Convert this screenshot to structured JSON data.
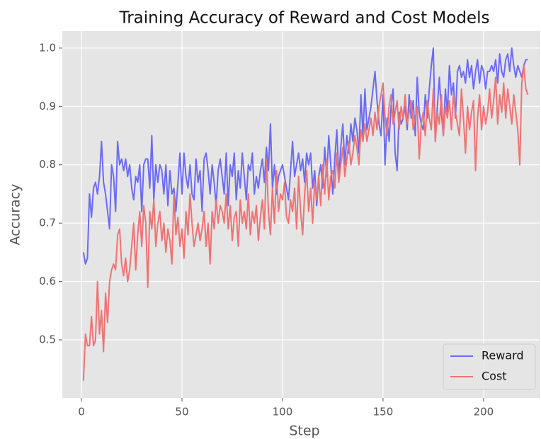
{
  "chart_data": {
    "type": "line",
    "title": "Training Accuracy of Reward and Cost Models",
    "xlabel": "Step",
    "ylabel": "Accuracy",
    "x": [
      1,
      2,
      3,
      4,
      5,
      6,
      7,
      8,
      9,
      10,
      11,
      12,
      13,
      14,
      15,
      16,
      17,
      18,
      19,
      20,
      21,
      22,
      23,
      24,
      25,
      26,
      27,
      28,
      29,
      30,
      31,
      32,
      33,
      34,
      35,
      36,
      37,
      38,
      39,
      40,
      41,
      42,
      43,
      44,
      45,
      46,
      47,
      48,
      49,
      50,
      51,
      52,
      53,
      54,
      55,
      56,
      57,
      58,
      59,
      60,
      61,
      62,
      63,
      64,
      65,
      66,
      67,
      68,
      69,
      70,
      71,
      72,
      73,
      74,
      75,
      76,
      77,
      78,
      79,
      80,
      81,
      82,
      83,
      84,
      85,
      86,
      87,
      88,
      89,
      90,
      91,
      92,
      93,
      94,
      95,
      96,
      97,
      98,
      99,
      100,
      101,
      102,
      103,
      104,
      105,
      106,
      107,
      108,
      109,
      110,
      111,
      112,
      113,
      114,
      115,
      116,
      117,
      118,
      119,
      120,
      121,
      122,
      123,
      124,
      125,
      126,
      127,
      128,
      129,
      130,
      131,
      132,
      133,
      134,
      135,
      136,
      137,
      138,
      139,
      140,
      141,
      142,
      143,
      144,
      145,
      146,
      147,
      148,
      149,
      150,
      151,
      152,
      153,
      154,
      155,
      156,
      157,
      158,
      159,
      160,
      161,
      162,
      163,
      164,
      165,
      166,
      167,
      168,
      169,
      170,
      171,
      172,
      173,
      174,
      175,
      176,
      177,
      178,
      179,
      180,
      181,
      182,
      183,
      184,
      185,
      186,
      187,
      188,
      189,
      190,
      191,
      192,
      193,
      194,
      195,
      196,
      197,
      198,
      199,
      200,
      201,
      202,
      203,
      204,
      205,
      206,
      207,
      208,
      209,
      210,
      211,
      212,
      213,
      214,
      215,
      216,
      217,
      218,
      219,
      220,
      221,
      222
    ],
    "series": [
      {
        "name": "Reward",
        "color": "#6b6bf4",
        "values": [
          0.65,
          0.63,
          0.64,
          0.75,
          0.71,
          0.76,
          0.77,
          0.75,
          0.78,
          0.84,
          0.77,
          0.75,
          0.72,
          0.69,
          0.8,
          0.78,
          0.72,
          0.84,
          0.8,
          0.81,
          0.79,
          0.81,
          0.78,
          0.8,
          0.76,
          0.74,
          0.78,
          0.77,
          0.8,
          0.72,
          0.8,
          0.81,
          0.81,
          0.76,
          0.85,
          0.74,
          0.8,
          0.77,
          0.8,
          0.79,
          0.75,
          0.8,
          0.73,
          0.79,
          0.75,
          0.76,
          0.72,
          0.77,
          0.82,
          0.75,
          0.82,
          0.78,
          0.76,
          0.8,
          0.75,
          0.74,
          0.81,
          0.77,
          0.79,
          0.72,
          0.81,
          0.82,
          0.79,
          0.75,
          0.8,
          0.77,
          0.73,
          0.79,
          0.81,
          0.78,
          0.75,
          0.82,
          0.73,
          0.8,
          0.78,
          0.82,
          0.74,
          0.79,
          0.76,
          0.82,
          0.78,
          0.74,
          0.8,
          0.79,
          0.82,
          0.75,
          0.78,
          0.76,
          0.79,
          0.81,
          0.77,
          0.83,
          0.79,
          0.87,
          0.76,
          0.8,
          0.75,
          0.78,
          0.79,
          0.8,
          0.78,
          0.76,
          0.74,
          0.79,
          0.84,
          0.78,
          0.8,
          0.82,
          0.79,
          0.81,
          0.77,
          0.82,
          0.8,
          0.82,
          0.76,
          0.79,
          0.73,
          0.78,
          0.8,
          0.76,
          0.83,
          0.78,
          0.85,
          0.8,
          0.75,
          0.81,
          0.86,
          0.78,
          0.83,
          0.87,
          0.8,
          0.85,
          0.82,
          0.87,
          0.84,
          0.88,
          0.86,
          0.82,
          0.92,
          0.85,
          0.93,
          0.86,
          0.88,
          0.9,
          0.93,
          0.96,
          0.91,
          0.87,
          0.85,
          0.92,
          0.8,
          0.88,
          0.84,
          0.9,
          0.93,
          0.82,
          0.79,
          0.89,
          0.87,
          0.88,
          0.9,
          0.86,
          0.92,
          0.88,
          0.91,
          0.85,
          0.95,
          0.89,
          0.87,
          0.86,
          0.92,
          0.88,
          0.93,
          0.97,
          1.0,
          0.84,
          0.9,
          0.95,
          0.89,
          0.85,
          0.93,
          0.89,
          0.97,
          0.92,
          0.94,
          0.88,
          0.96,
          0.97,
          0.95,
          0.96,
          0.94,
          0.98,
          0.95,
          0.97,
          0.93,
          0.96,
          0.98,
          0.94,
          0.97,
          0.96,
          0.93,
          0.96,
          0.96,
          0.97,
          0.96,
          0.98,
          0.94,
          0.99,
          0.96,
          0.95,
          0.98,
          0.99,
          0.96,
          1.0,
          0.97,
          0.95,
          0.97,
          0.96,
          0.95,
          0.97,
          0.98,
          0.98
        ]
      },
      {
        "name": "Cost",
        "color": "#f07272",
        "values": [
          0.43,
          0.51,
          0.49,
          0.49,
          0.54,
          0.49,
          0.5,
          0.6,
          0.51,
          0.55,
          0.48,
          0.58,
          0.53,
          0.6,
          0.62,
          0.63,
          0.62,
          0.68,
          0.69,
          0.63,
          0.61,
          0.64,
          0.6,
          0.62,
          0.66,
          0.7,
          0.62,
          0.68,
          0.72,
          0.66,
          0.73,
          0.7,
          0.59,
          0.72,
          0.69,
          0.74,
          0.66,
          0.7,
          0.72,
          0.67,
          0.7,
          0.65,
          0.69,
          0.67,
          0.63,
          0.75,
          0.68,
          0.71,
          0.66,
          0.69,
          0.64,
          0.72,
          0.68,
          0.75,
          0.7,
          0.66,
          0.68,
          0.7,
          0.67,
          0.69,
          0.72,
          0.66,
          0.7,
          0.63,
          0.72,
          0.69,
          0.74,
          0.7,
          0.73,
          0.72,
          0.7,
          0.75,
          0.69,
          0.73,
          0.67,
          0.71,
          0.72,
          0.66,
          0.74,
          0.7,
          0.72,
          0.69,
          0.75,
          0.68,
          0.72,
          0.7,
          0.73,
          0.67,
          0.71,
          0.74,
          0.69,
          0.81,
          0.72,
          0.68,
          0.76,
          0.7,
          0.79,
          0.72,
          0.75,
          0.74,
          0.77,
          0.71,
          0.7,
          0.74,
          0.72,
          0.76,
          0.69,
          0.78,
          0.72,
          0.68,
          0.75,
          0.79,
          0.72,
          0.76,
          0.7,
          0.77,
          0.74,
          0.78,
          0.73,
          0.8,
          0.75,
          0.81,
          0.74,
          0.78,
          0.79,
          0.76,
          0.82,
          0.77,
          0.8,
          0.83,
          0.78,
          0.81,
          0.84,
          0.8,
          0.82,
          0.85,
          0.83,
          0.8,
          0.86,
          0.84,
          0.87,
          0.84,
          0.86,
          0.88,
          0.85,
          0.89,
          0.86,
          0.9,
          0.92,
          0.94,
          0.88,
          0.85,
          0.9,
          0.92,
          0.87,
          0.89,
          0.91,
          0.86,
          0.9,
          0.88,
          0.92,
          0.87,
          0.89,
          0.91,
          0.86,
          0.88,
          0.9,
          0.81,
          0.87,
          0.89,
          0.85,
          0.91,
          0.88,
          0.86,
          0.93,
          0.84,
          0.89,
          0.87,
          0.92,
          0.85,
          0.9,
          0.88,
          0.91,
          0.86,
          0.92,
          0.89,
          0.87,
          0.85,
          0.93,
          0.88,
          0.82,
          0.9,
          0.86,
          0.89,
          0.91,
          0.79,
          0.88,
          0.92,
          0.86,
          0.9,
          0.87,
          0.89,
          0.93,
          0.88,
          0.91,
          0.95,
          0.87,
          0.92,
          0.89,
          0.94,
          0.88,
          0.93,
          0.9,
          0.87,
          0.92,
          0.89,
          0.86,
          0.8,
          0.94,
          0.97,
          0.93,
          0.92
        ]
      }
    ],
    "xlim": [
      -9.5,
      228.2
    ],
    "ylim": [
      0.4005,
      1.029
    ],
    "xticks": [
      0,
      50,
      100,
      150,
      200
    ],
    "yticks": [
      0.5,
      0.6,
      0.7,
      0.8,
      0.9,
      {
        "value": 1,
        "label": "1.0"
      }
    ],
    "grid": true,
    "legend": "lower right"
  }
}
